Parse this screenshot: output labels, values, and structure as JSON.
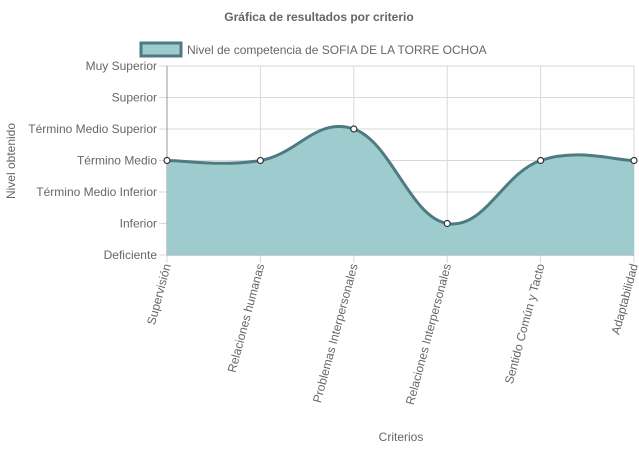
{
  "chart_data": {
    "type": "area",
    "title": "Gráfica de resultados por criterio",
    "xlabel": "Criterios",
    "ylabel": "Nivel obtenido",
    "y_levels": [
      "Deficiente",
      "Inferior",
      "Término Medio Inferior",
      "Término Medio",
      "Término Medio Superior",
      "Superior",
      "Muy Superior"
    ],
    "categories": [
      "Supervisión",
      "Relaciones humanas",
      "Problemas Interpersonales",
      "Relaciones Interpersonales",
      "Sentido Común y Tacto",
      "Adaptabilidad"
    ],
    "series": [
      {
        "name": "Nivel de competencia de SOFIA DE LA TORRE OCHOA",
        "values": [
          3,
          3,
          4,
          1,
          3,
          3
        ],
        "value_labels": [
          "Término Medio",
          "Término Medio",
          "Término Medio Superior",
          "Inferior",
          "Término Medio",
          "Término Medio"
        ]
      }
    ],
    "ylim": [
      0,
      6
    ],
    "grid": true,
    "legend_position": "top",
    "colors": {
      "fill": "#9ecbcd",
      "line": "#4e7a82",
      "point_fill": "#ffffff",
      "grid": "#d9d9d9",
      "axis": "#999999",
      "text": "#666666"
    }
  }
}
